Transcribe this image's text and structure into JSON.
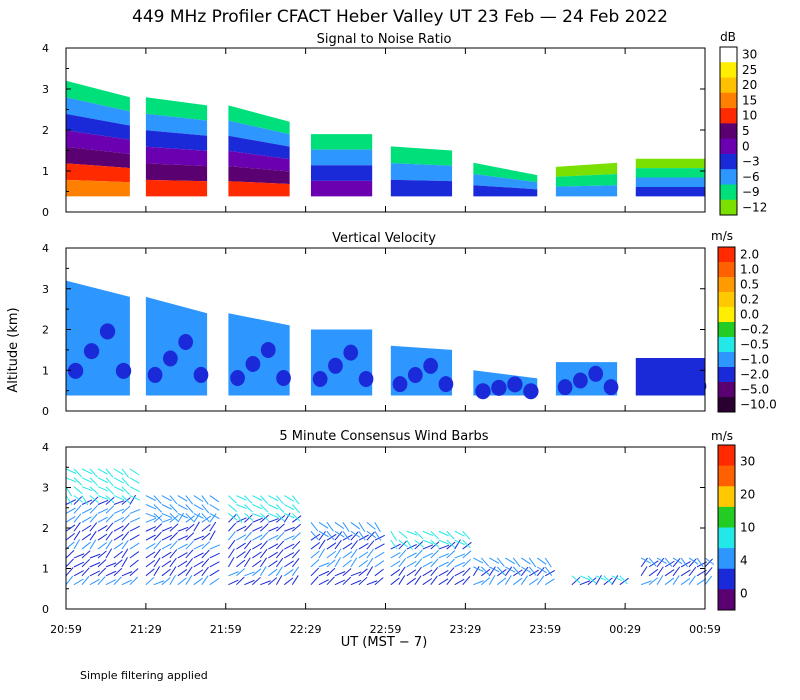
{
  "figure": {
    "title": "449 MHz Profiler CFACT Heber Valley UT 23 Feb — 24 Feb 2022",
    "ylabel": "Altitude (km)",
    "xlabel": "UT   (MST − 7)",
    "footnote": "Simple filtering applied"
  },
  "chart_data": [
    {
      "type": "heatmap",
      "title": "Signal to Noise Ratio",
      "ylabel": "Altitude (km)",
      "xlabel": "UT (MST - 7)",
      "x_ticks": [
        "20:59",
        "21:29",
        "21:59",
        "22:29",
        "22:59",
        "23:29",
        "23:59",
        "00:29",
        "00:59"
      ],
      "y_ticks": [
        "0",
        "1",
        "2",
        "3",
        "4"
      ],
      "ylim": [
        0,
        4
      ],
      "colorbar": {
        "unit": "dB",
        "labels": [
          "30",
          "25",
          "20",
          "15",
          "10",
          "5",
          "0",
          "−3",
          "−6",
          "−9",
          "−12"
        ],
        "colors": [
          "#ffffff",
          "#ffee00",
          "#ffc000",
          "#ff8000",
          "#ff2a00",
          "#5a0070",
          "#6a00b0",
          "#1a2ad8",
          "#2d96ff",
          "#00e07a",
          "#7ae000"
        ]
      },
      "segments": [
        {
          "start": 0,
          "end": 24,
          "top_km": [
            3.2,
            2.8
          ],
          "layers_db": [
            -9,
            -6,
            -3,
            0,
            5,
            10,
            15
          ]
        },
        {
          "start": 30,
          "end": 53,
          "top_km": [
            2.8,
            2.6
          ],
          "layers_db": [
            -9,
            -6,
            -3,
            0,
            5,
            10
          ]
        },
        {
          "start": 61,
          "end": 84,
          "top_km": [
            2.6,
            2.2
          ],
          "layers_db": [
            -9,
            -6,
            -3,
            0,
            5,
            10
          ]
        },
        {
          "start": 92,
          "end": 115,
          "top_km": [
            1.9,
            1.9
          ],
          "layers_db": [
            -9,
            -6,
            -3,
            0
          ]
        },
        {
          "start": 122,
          "end": 145,
          "top_km": [
            1.6,
            1.5
          ],
          "layers_db": [
            -9,
            -6,
            -3
          ]
        },
        {
          "start": 153,
          "end": 177,
          "top_km": [
            1.2,
            0.9
          ],
          "layers_db": [
            -9,
            -6,
            -3
          ]
        },
        {
          "start": 184,
          "end": 207,
          "top_km": [
            1.1,
            1.2
          ],
          "layers_db": [
            -12,
            -9,
            -6
          ]
        },
        {
          "start": 214,
          "end": 240,
          "top_km": [
            1.3,
            1.3
          ],
          "layers_db": [
            -12,
            -9,
            -6,
            -3
          ]
        }
      ]
    },
    {
      "type": "heatmap",
      "title": "Vertical Velocity",
      "ylabel": "Altitude (km)",
      "x_ticks": [
        "20:59",
        "21:29",
        "21:59",
        "22:29",
        "22:59",
        "23:29",
        "23:59",
        "00:29",
        "00:59"
      ],
      "y_ticks": [
        "0",
        "1",
        "2",
        "3",
        "4"
      ],
      "ylim": [
        0,
        4
      ],
      "colorbar": {
        "unit": "m/s",
        "labels": [
          "2.0",
          "1.0",
          "0.5",
          "0.2",
          "0.0",
          "−0.2",
          "−0.5",
          "−1.0",
          "−2.0",
          "−5.0",
          "−10.0"
        ],
        "colors": [
          "#ff2a00",
          "#ff6000",
          "#ff9a00",
          "#ffc800",
          "#ffee00",
          "#22cc22",
          "#22e8e8",
          "#2d96ff",
          "#1a2ad8",
          "#5a0070",
          "#2a0030"
        ]
      },
      "segments": [
        {
          "start": 0,
          "end": 24,
          "top_km": [
            3.2,
            2.8
          ],
          "dominant_ms": -1.0
        },
        {
          "start": 30,
          "end": 53,
          "top_km": [
            2.8,
            2.4
          ],
          "dominant_ms": -1.0
        },
        {
          "start": 61,
          "end": 84,
          "top_km": [
            2.4,
            2.1
          ],
          "dominant_ms": -1.0
        },
        {
          "start": 92,
          "end": 115,
          "top_km": [
            2.0,
            2.0
          ],
          "dominant_ms": -1.0
        },
        {
          "start": 122,
          "end": 145,
          "top_km": [
            1.6,
            1.5
          ],
          "dominant_ms": -1.0
        },
        {
          "start": 153,
          "end": 177,
          "top_km": [
            1.0,
            0.8
          ],
          "dominant_ms": -1.0
        },
        {
          "start": 184,
          "end": 207,
          "top_km": [
            1.2,
            1.2
          ],
          "dominant_ms": -1.0
        },
        {
          "start": 214,
          "end": 240,
          "top_km": [
            1.3,
            1.3
          ],
          "dominant_ms": -2.0
        }
      ]
    },
    {
      "type": "scatter",
      "title": "5 Minute Consensus Wind Barbs",
      "ylabel": "Altitude (km)",
      "x_ticks": [
        "20:59",
        "21:29",
        "21:59",
        "22:29",
        "22:59",
        "23:29",
        "23:59",
        "00:29",
        "00:59"
      ],
      "y_ticks": [
        "0",
        "1",
        "2",
        "3",
        "4"
      ],
      "ylim": [
        0,
        4
      ],
      "colorbar": {
        "unit": "m/s",
        "labels": [
          "30",
          "20",
          "10",
          "4",
          "0"
        ],
        "colors": [
          "#ff2a00",
          "#ff6000",
          "#ffc800",
          "#22cc22",
          "#22e8e8",
          "#2d96ff",
          "#1a2ad8",
          "#5a0070"
        ]
      },
      "barb_columns": [
        {
          "start": 0,
          "end": 25,
          "top_km": 3.5
        },
        {
          "start": 30,
          "end": 55,
          "top_km": 3.0
        },
        {
          "start": 61,
          "end": 86,
          "top_km": 2.9
        },
        {
          "start": 92,
          "end": 117,
          "top_km": 2.3
        },
        {
          "start": 122,
          "end": 150,
          "top_km": 2.0
        },
        {
          "start": 153,
          "end": 180,
          "top_km": 1.3
        },
        {
          "start": 190,
          "end": 210,
          "top_km": 1.0
        },
        {
          "start": 216,
          "end": 240,
          "top_km": 1.4
        }
      ]
    }
  ]
}
